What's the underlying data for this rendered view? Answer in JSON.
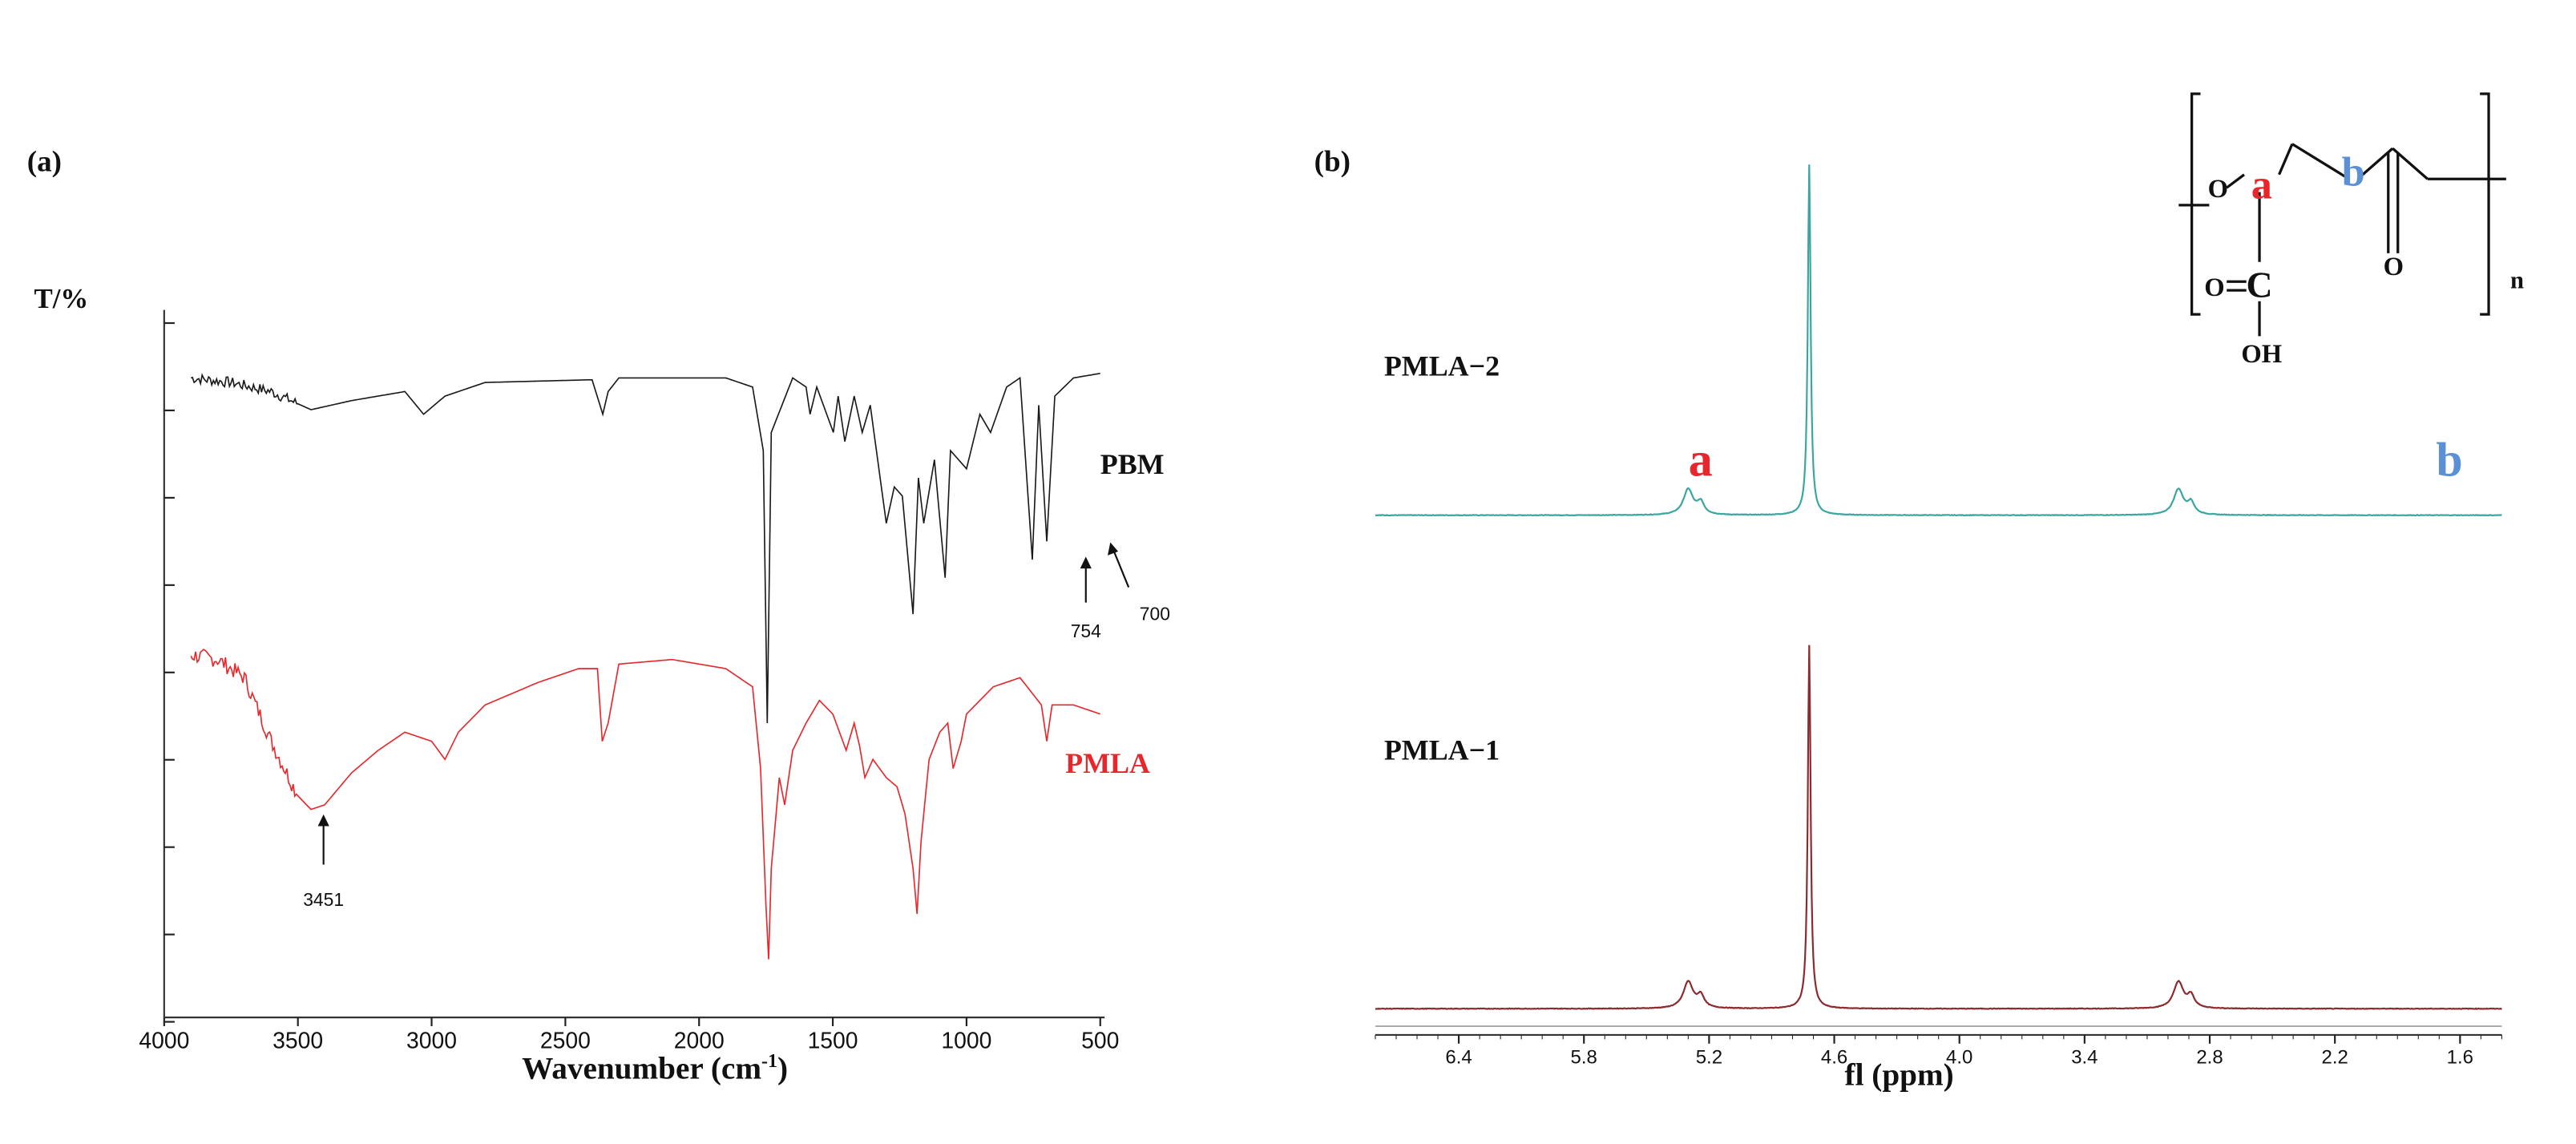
{
  "colors": {
    "pbm": "#1a1a1a",
    "pmla": "#e8262b",
    "pmla2": "#3aa6a0",
    "pmla1": "#8c2a2f",
    "label_a": "#e8262b",
    "label_b": "#5b8fd6",
    "axis": "#222222"
  },
  "chart_data": [
    {
      "panel": "(a)",
      "type": "line",
      "title": "",
      "xlabel": "Wavenumber (cm-1)",
      "ylabel": "T/%",
      "xlim": [
        4000,
        500
      ],
      "x_ticks": [
        "4000",
        "3500",
        "3000",
        "2500",
        "2000",
        "1500",
        "1000",
        "500"
      ],
      "grid": false,
      "series": [
        {
          "name": "PBM",
          "color_key": "pbm",
          "points": [
            [
              3900,
              88
            ],
            [
              3750,
              87.5
            ],
            [
              3600,
              86.5
            ],
            [
              3451,
              84.5
            ],
            [
              3300,
              85.5
            ],
            [
              3100,
              86.5
            ],
            [
              3030,
              84
            ],
            [
              2950,
              86
            ],
            [
              2800,
              87.5
            ],
            [
              2400,
              87.8
            ],
            [
              2360,
              84
            ],
            [
              2340,
              86.5
            ],
            [
              2300,
              88
            ],
            [
              1900,
              88
            ],
            [
              1800,
              87
            ],
            [
              1760,
              80
            ],
            [
              1745,
              50
            ],
            [
              1730,
              82
            ],
            [
              1650,
              88
            ],
            [
              1600,
              87
            ],
            [
              1585,
              84
            ],
            [
              1560,
              87
            ],
            [
              1498,
              82
            ],
            [
              1480,
              86
            ],
            [
              1455,
              81
            ],
            [
              1420,
              86
            ],
            [
              1390,
              82
            ],
            [
              1360,
              85
            ],
            [
              1300,
              72
            ],
            [
              1270,
              76
            ],
            [
              1240,
              75
            ],
            [
              1200,
              62
            ],
            [
              1180,
              77
            ],
            [
              1160,
              72
            ],
            [
              1120,
              79
            ],
            [
              1080,
              66
            ],
            [
              1060,
              80
            ],
            [
              1000,
              78
            ],
            [
              950,
              84
            ],
            [
              910,
              82
            ],
            [
              850,
              87
            ],
            [
              800,
              88
            ],
            [
              754,
              68
            ],
            [
              730,
              85
            ],
            [
              700,
              70
            ],
            [
              670,
              86
            ],
            [
              600,
              88
            ],
            [
              500,
              88.5
            ]
          ]
        },
        {
          "name": "PMLA",
          "color_key": "pmla",
          "points": [
            [
              3900,
              57.5
            ],
            [
              3800,
              57
            ],
            [
              3700,
              55
            ],
            [
              3600,
              48
            ],
            [
              3500,
              42
            ],
            [
              3451,
              40.5
            ],
            [
              3400,
              41
            ],
            [
              3300,
              44.5
            ],
            [
              3200,
              47
            ],
            [
              3100,
              49
            ],
            [
              3000,
              48
            ],
            [
              2950,
              46
            ],
            [
              2900,
              49
            ],
            [
              2800,
              52
            ],
            [
              2600,
              54.5
            ],
            [
              2450,
              56
            ],
            [
              2380,
              56
            ],
            [
              2362,
              48
            ],
            [
              2340,
              50
            ],
            [
              2300,
              56.5
            ],
            [
              2100,
              57
            ],
            [
              1900,
              56
            ],
            [
              1800,
              54
            ],
            [
              1770,
              45
            ],
            [
              1750,
              30
            ],
            [
              1740,
              24
            ],
            [
              1730,
              34
            ],
            [
              1700,
              44
            ],
            [
              1680,
              41
            ],
            [
              1650,
              47
            ],
            [
              1600,
              50
            ],
            [
              1550,
              52.5
            ],
            [
              1500,
              51
            ],
            [
              1450,
              47
            ],
            [
              1420,
              50
            ],
            [
              1400,
              47.5
            ],
            [
              1380,
              44
            ],
            [
              1350,
              46
            ],
            [
              1300,
              44
            ],
            [
              1260,
              43
            ],
            [
              1230,
              40
            ],
            [
              1200,
              34
            ],
            [
              1185,
              29
            ],
            [
              1170,
              37
            ],
            [
              1140,
              46
            ],
            [
              1100,
              49
            ],
            [
              1070,
              50
            ],
            [
              1050,
              45
            ],
            [
              1020,
              48
            ],
            [
              1000,
              51
            ],
            [
              900,
              54
            ],
            [
              800,
              55
            ],
            [
              720,
              52
            ],
            [
              700,
              48
            ],
            [
              680,
              52
            ],
            [
              600,
              52
            ],
            [
              500,
              51
            ]
          ]
        }
      ],
      "legend": [
        "PBM",
        "PMLA"
      ],
      "annotations": [
        "3451",
        "754",
        "700"
      ]
    },
    {
      "panel": "(b)",
      "type": "line",
      "title": "",
      "xlabel": "fl (ppm)",
      "ylabel": "",
      "xlim": [
        6.8,
        1.4
      ],
      "x_ticks": [
        "6.4",
        "5.8",
        "5.2",
        "4.6",
        "4.0",
        "3.4",
        "2.8",
        "2.2",
        "1.6"
      ],
      "grid": false,
      "series": [
        {
          "name": "PMLA-2",
          "color_key": "pmla2",
          "peaks": [
            {
              "ppm": 5.3,
              "height": 0.055,
              "label": "a"
            },
            {
              "ppm": 4.72,
              "height": 0.75,
              "label": ""
            },
            {
              "ppm": 2.95,
              "height": 0.055,
              "label": "b"
            }
          ]
        },
        {
          "name": "PMLA-1",
          "color_key": "pmla1",
          "peaks": [
            {
              "ppm": 5.3,
              "height": 0.055,
              "label": ""
            },
            {
              "ppm": 4.72,
              "height": 0.75,
              "label": ""
            },
            {
              "ppm": 2.95,
              "height": 0.055,
              "label": ""
            }
          ]
        }
      ],
      "structure_labels": {
        "o_left": "O",
        "a": "a",
        "b": "b",
        "o_bottom": "O",
        "c": "C",
        "o_right": "O",
        "oh": "OH",
        "n": "n"
      }
    }
  ],
  "panel_a": {
    "panel_label": "(a)",
    "y_label": "T/%",
    "x_title_main": "Wavenumber (cm",
    "x_title_sup": "-1",
    "x_title_end": ")",
    "series_label_pbm": "PBM",
    "series_label_pmla": "PMLA",
    "ann_3451": "3451",
    "ann_754": "754",
    "ann_700": "700"
  },
  "panel_b": {
    "panel_label": "(b)",
    "x_title": "fl (ppm)",
    "series_label_2": "PMLA−2",
    "series_label_1": "PMLA−1",
    "peak_a": "a",
    "peak_b": "b"
  }
}
